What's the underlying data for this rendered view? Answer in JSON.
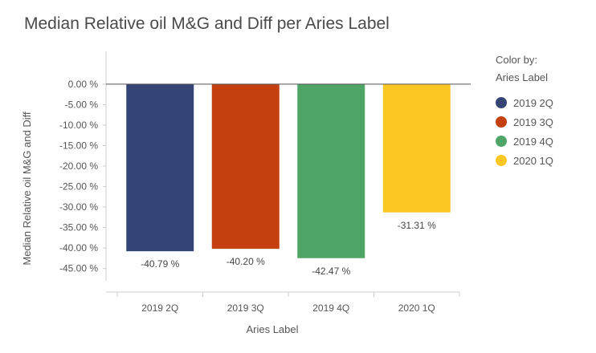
{
  "title": "Median Relative oil M&G and Diff per Aries Label",
  "legend": {
    "title_line1": "Color by:",
    "title_line2": "Aries Label"
  },
  "chart_data": {
    "type": "bar",
    "title": "Median Relative oil M&G and Diff per Aries Label",
    "xlabel": "Aries Label",
    "ylabel": "Median Relative oil M&G and Diff",
    "categories": [
      "2019 2Q",
      "2019 3Q",
      "2019 4Q",
      "2020 1Q"
    ],
    "values": [
      -40.79,
      -40.2,
      -42.47,
      -31.31
    ],
    "value_labels": [
      "-40.79 %",
      "-40.20 %",
      "-42.47 %",
      "-31.31 %"
    ],
    "colors": [
      "#344575",
      "#c4400e",
      "#4fa565",
      "#fcc623"
    ],
    "ylim": [
      -48,
      8
    ],
    "yticks": [
      0,
      -5,
      -10,
      -15,
      -20,
      -25,
      -30,
      -35,
      -40,
      -45
    ],
    "ytick_labels": [
      "0.00 %",
      "-5.00 %",
      "-10.00 %",
      "-15.00 %",
      "-20.00 %",
      "-25.00 %",
      "-30.00 %",
      "-35.00 %",
      "-40.00 %",
      "-45.00 %"
    ],
    "grid": false,
    "legend_position": "right"
  }
}
